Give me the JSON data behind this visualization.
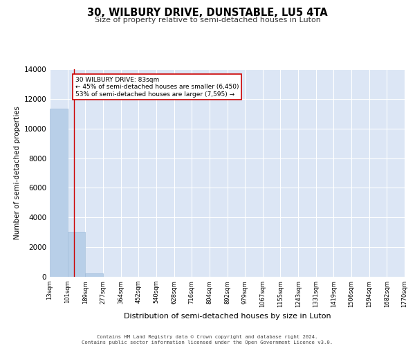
{
  "title": "30, WILBURY DRIVE, DUNSTABLE, LU5 4TA",
  "subtitle": "Size of property relative to semi-detached houses in Luton",
  "xlabel": "Distribution of semi-detached houses by size in Luton",
  "ylabel": "Number of semi-detached properties",
  "bar_color": "#b8cfe8",
  "bar_edge_color": "#9ab8d8",
  "background_color": "#dce6f5",
  "grid_color": "#ffffff",
  "property_label": "30 WILBURY DRIVE: 83sqm",
  "pct_smaller": 45,
  "count_smaller": 6450,
  "pct_larger": 53,
  "count_larger": 7595,
  "bin_labels": [
    "13sqm",
    "101sqm",
    "189sqm",
    "277sqm",
    "364sqm",
    "452sqm",
    "540sqm",
    "628sqm",
    "716sqm",
    "804sqm",
    "892sqm",
    "979sqm",
    "1067sqm",
    "1155sqm",
    "1243sqm",
    "1331sqm",
    "1419sqm",
    "1506sqm",
    "1594sqm",
    "1682sqm",
    "1770sqm"
  ],
  "bar_heights": [
    11340,
    3050,
    250,
    0,
    0,
    0,
    0,
    0,
    0,
    0,
    0,
    0,
    0,
    0,
    0,
    0,
    0,
    0,
    0,
    0
  ],
  "red_line_index": 0.85,
  "ylim": [
    0,
    14000
  ],
  "yticks": [
    0,
    2000,
    4000,
    6000,
    8000,
    10000,
    12000,
    14000
  ],
  "footer_line1": "Contains HM Land Registry data © Crown copyright and database right 2024.",
  "footer_line2": "Contains public sector information licensed under the Open Government Licence v3.0."
}
